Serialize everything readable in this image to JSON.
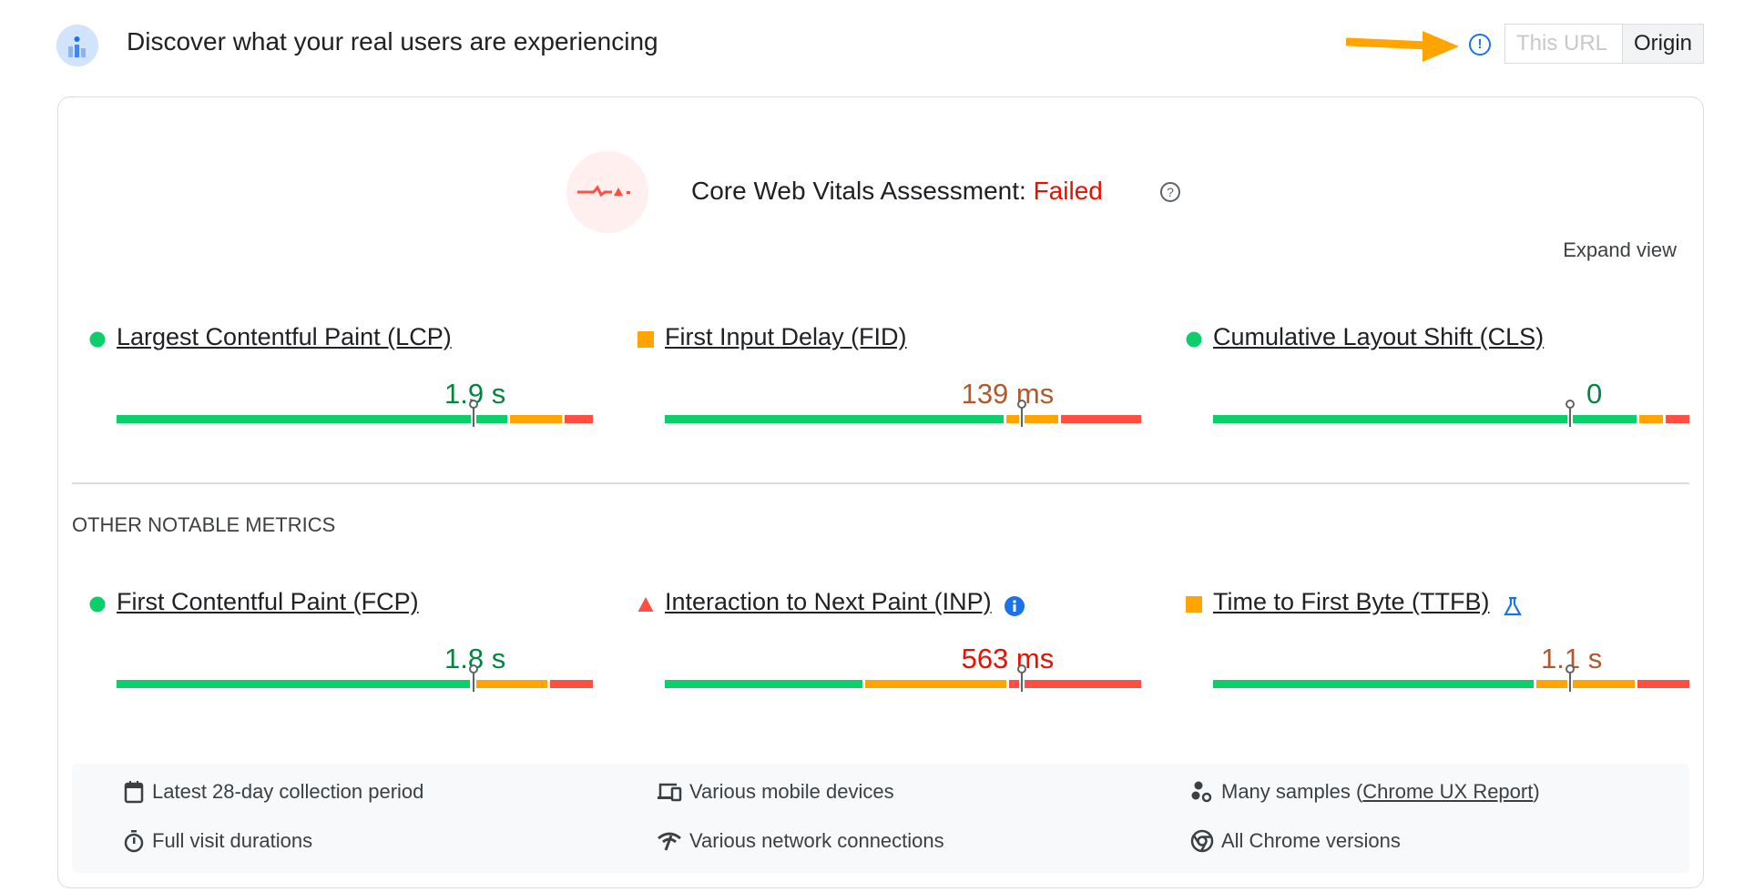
{
  "header": {
    "title": "Discover what your real users are experiencing",
    "tabs": [
      {
        "label": "This URL",
        "active": false
      },
      {
        "label": "Origin",
        "active": true
      }
    ],
    "info_icon": "info-circle-icon",
    "annotation": "orange-arrow"
  },
  "assessment": {
    "label": "Core Web Vitals Assessment:",
    "status": "Failed",
    "status_color": "#eb0f00"
  },
  "expand_label": "Expand view",
  "colors": {
    "good": "#0cce6b",
    "needs_improvement": "#ffa400",
    "poor": "#ff4e42",
    "good_text": "#018642",
    "ni_text": "#b3582a",
    "poor_text": "#eb0f00"
  },
  "core_metrics": [
    {
      "label": "Largest Contentful Paint (LCP)",
      "value": "1.9 s",
      "rating": "good",
      "distribution": [
        83,
        11,
        6
      ],
      "percentile_marker": 75
    },
    {
      "label": "First Input Delay (FID)",
      "value": "139 ms",
      "rating": "needs_improvement",
      "distribution": [
        72,
        11,
        17
      ],
      "percentile_marker": 75
    },
    {
      "label": "Cumulative Layout Shift (CLS)",
      "value": "0",
      "rating": "good",
      "distribution": [
        90,
        5,
        5
      ],
      "percentile_marker": 75
    }
  ],
  "other_heading": "OTHER NOTABLE METRICS",
  "other_metrics": [
    {
      "label": "First Contentful Paint (FCP)",
      "value": "1.8 s",
      "rating": "good",
      "distribution": [
        75,
        16,
        9
      ],
      "percentile_marker": 75
    },
    {
      "label": "Interaction to Next Paint (INP)",
      "value": "563 ms",
      "rating": "poor",
      "distribution": [
        42,
        30,
        28
      ],
      "percentile_marker": 75,
      "badge": "info-icon"
    },
    {
      "label": "Time to First Byte (TTFB)",
      "value": "1.1 s",
      "rating": "needs_improvement",
      "distribution": [
        68,
        21,
        11
      ],
      "percentile_marker": 75,
      "badge": "flask-icon"
    }
  ],
  "footer": {
    "collection": "Latest 28-day collection period",
    "devices": "Various mobile devices",
    "samples_prefix": "Many samples (",
    "samples_link": "Chrome UX Report",
    "samples_suffix": ")",
    "durations": "Full visit durations",
    "network": "Various network connections",
    "chrome": "All Chrome versions"
  }
}
